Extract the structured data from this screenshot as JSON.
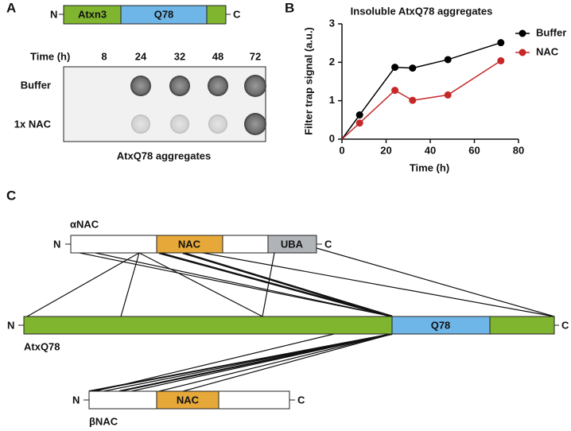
{
  "panel_a": {
    "label": "A",
    "construct": {
      "n": "N",
      "segments": [
        "Atxn3",
        "Q78"
      ],
      "c": "C"
    },
    "time_label": "Time (h)",
    "times": [
      "8",
      "24",
      "32",
      "48",
      "72"
    ],
    "rows": [
      "Buffer",
      "1x NAC"
    ],
    "caption": "AtxQ78 aggregates"
  },
  "chart_data": {
    "type": "line",
    "panel_label": "B",
    "title": "Insoluble AtxQ78 aggregates",
    "x_label": "Time (h)",
    "y_label": "Filter trap signal (a.u.)",
    "x": [
      0,
      8,
      24,
      32,
      48,
      72
    ],
    "series": [
      {
        "name": "Buffer",
        "color": "#000000",
        "values": [
          0,
          0.63,
          1.87,
          1.85,
          2.07,
          2.51
        ]
      },
      {
        "name": "NAC",
        "color": "#c62828",
        "values": [
          0,
          0.42,
          1.27,
          1.01,
          1.15,
          2.04
        ]
      }
    ],
    "xlim": [
      0,
      80
    ],
    "xticks": [
      0,
      20,
      40,
      60,
      80
    ],
    "ylim": [
      0,
      3
    ],
    "yticks": [
      0,
      1,
      2,
      3
    ],
    "legend": "upper right"
  },
  "panel_c": {
    "label": "C",
    "alpha": {
      "name": "αNAC",
      "n": "N",
      "c": "C",
      "domains": [
        "NAC",
        "UBA"
      ]
    },
    "atx": {
      "name": "AtxQ78",
      "n": "N",
      "c": "C",
      "domain": "Q78"
    },
    "beta": {
      "name": "βNAC",
      "n": "N",
      "c": "C",
      "domain": "NAC"
    }
  }
}
